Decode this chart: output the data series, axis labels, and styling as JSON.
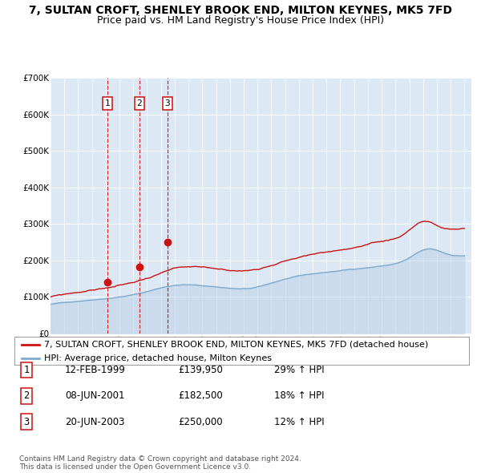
{
  "title": "7, SULTAN CROFT, SHENLEY BROOK END, MILTON KEYNES, MK5 7FD",
  "subtitle": "Price paid vs. HM Land Registry's House Price Index (HPI)",
  "ylim": [
    0,
    700000
  ],
  "yticks": [
    0,
    100000,
    200000,
    300000,
    400000,
    500000,
    600000,
    700000
  ],
  "ytick_labels": [
    "£0",
    "£100K",
    "£200K",
    "£300K",
    "£400K",
    "£500K",
    "£600K",
    "£700K"
  ],
  "xlim": [
    1995,
    2025.5
  ],
  "plot_bg_color": "#dde8f5",
  "red_color": "#cc1111",
  "blue_color": "#7faacc",
  "blue_fill_color": "#b8d0e8",
  "grid_color": "#ffffff",
  "vline_color": "#cc1111",
  "transactions": [
    {
      "label": "1",
      "year": 1999.12,
      "price": 139950,
      "date": "12-FEB-1999",
      "pct": "29%",
      "direction": "↑"
    },
    {
      "label": "2",
      "year": 2001.44,
      "price": 182500,
      "date": "08-JUN-2001",
      "pct": "18%",
      "direction": "↑"
    },
    {
      "label": "3",
      "year": 2003.47,
      "price": 250000,
      "date": "20-JUN-2003",
      "pct": "12%",
      "direction": "↑"
    }
  ],
  "legend_red_label": "7, SULTAN CROFT, SHENLEY BROOK END, MILTON KEYNES, MK5 7FD (detached house)",
  "legend_blue_label": "HPI: Average price, detached house, Milton Keynes",
  "footnote": "Contains HM Land Registry data © Crown copyright and database right 2024.\nThis data is licensed under the Open Government Licence v3.0.",
  "title_fontsize": 10,
  "subtitle_fontsize": 9,
  "tick_fontsize": 7.5,
  "legend_fontsize": 8,
  "table_fontsize": 8.5
}
